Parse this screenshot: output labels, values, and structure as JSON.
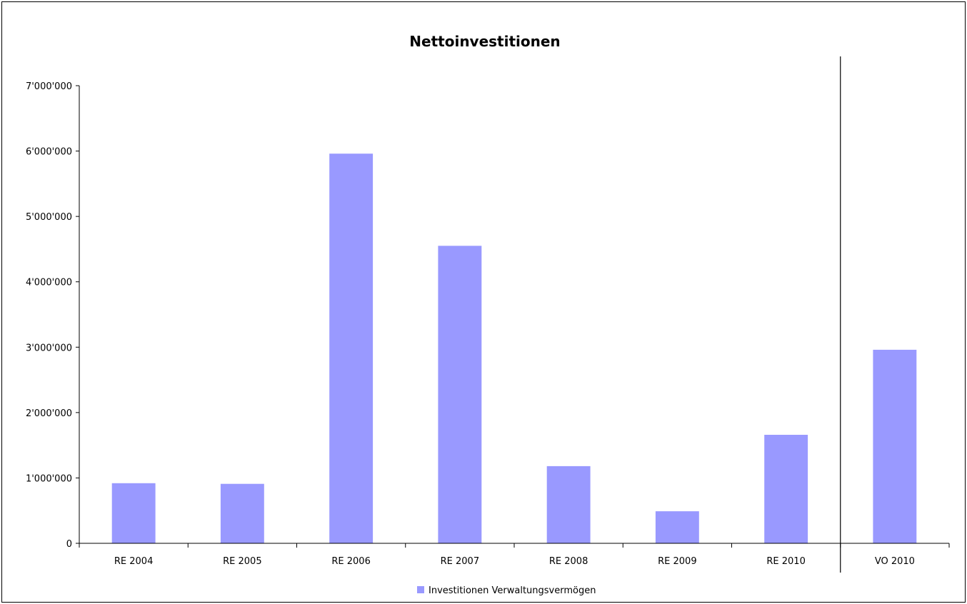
{
  "chart_data": {
    "type": "bar",
    "title": "Nettoinvestitionen",
    "xlabel": "",
    "ylabel": "",
    "categories": [
      "RE 2004",
      "RE 2005",
      "RE 2006",
      "RE 2007",
      "RE 2008",
      "RE 2009",
      "RE 2010",
      "VO 2010"
    ],
    "series": [
      {
        "name": "Investitionen Verwaltungsvermögen",
        "color": "#9999FF",
        "values": [
          920000,
          910000,
          5960000,
          4550000,
          1180000,
          490000,
          1660000,
          2960000
        ]
      }
    ],
    "ylim": [
      0,
      7000000
    ],
    "yticks": [
      0,
      1000000,
      2000000,
      3000000,
      4000000,
      5000000,
      6000000,
      7000000
    ],
    "ytick_labels": [
      "0",
      "1'000'000",
      "2'000'000",
      "3'000'000",
      "4'000'000",
      "5'000'000",
      "6'000'000",
      "7'000'000"
    ],
    "separator_after_category": "RE 2010",
    "grid": false,
    "legend_position": "bottom"
  }
}
